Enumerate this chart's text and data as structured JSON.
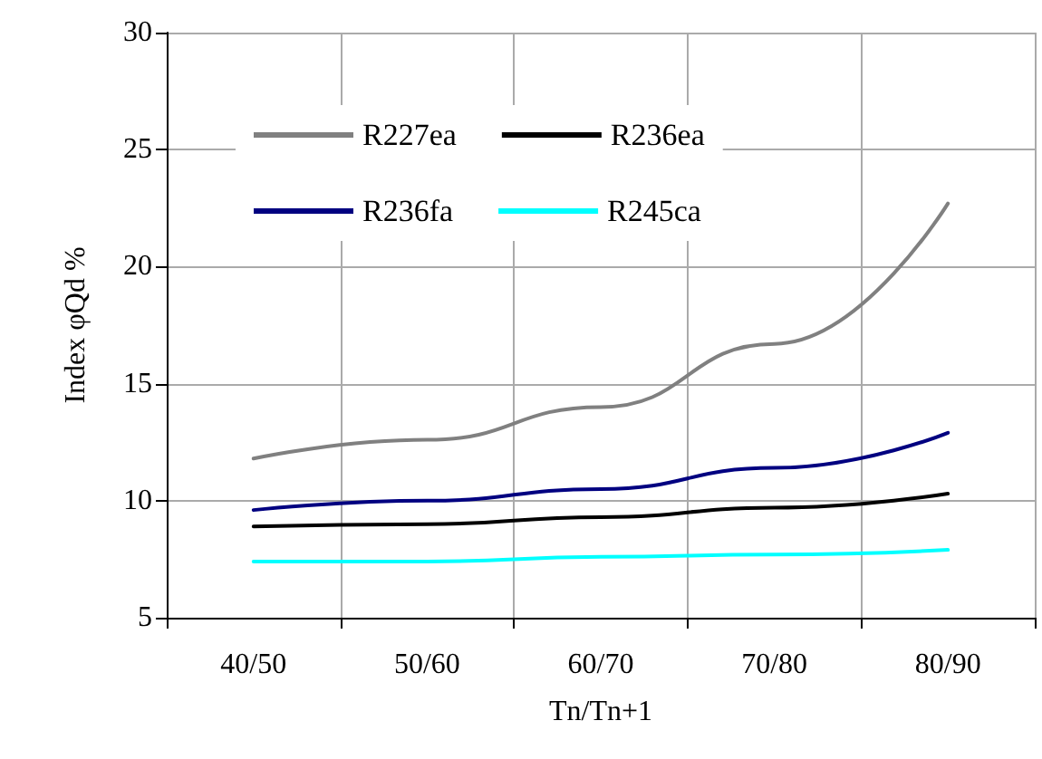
{
  "chart_data": {
    "type": "line",
    "xlabel": "Tn/Tn+1",
    "ylabel": "Index φQd %",
    "categories": [
      "40/50",
      "50/60",
      "60/70",
      "70/80",
      "80/90"
    ],
    "series": [
      {
        "name": "R227ea",
        "color": "#808080",
        "values": [
          11.8,
          12.6,
          14.0,
          16.7,
          22.7
        ]
      },
      {
        "name": "R236ea",
        "color": "#000000",
        "values": [
          8.9,
          9.0,
          9.3,
          9.7,
          10.3
        ]
      },
      {
        "name": "R236fa",
        "color": "#000080",
        "values": [
          9.6,
          10.0,
          10.5,
          11.4,
          12.9
        ]
      },
      {
        "name": "R245ca",
        "color": "#00ffff",
        "values": [
          7.4,
          7.4,
          7.6,
          7.7,
          7.9
        ]
      }
    ],
    "ylim": [
      5,
      30
    ],
    "yticks": [
      5,
      10,
      15,
      20,
      25,
      30
    ],
    "grid": true,
    "legend": "top left",
    "marker": "none",
    "line_style": "solid"
  }
}
